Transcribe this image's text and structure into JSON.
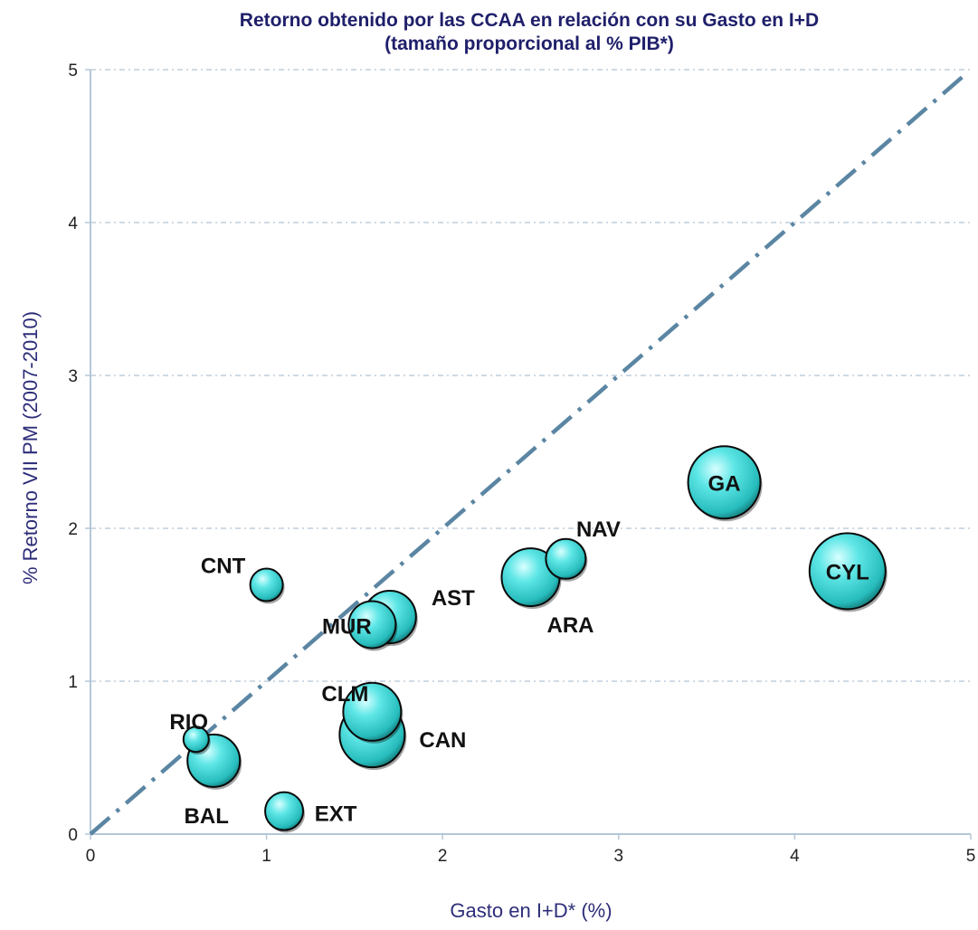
{
  "chart_data": {
    "type": "scatter",
    "subtype": "bubble",
    "title": "Retorno obtenido por las CCAA en relación con su Gasto en I+D",
    "subtitle": "(tamaño proporcional al % PIB*)",
    "xlabel": "Gasto en I+D* (%)",
    "ylabel": "% Retorno VII PM (2007-2010)",
    "xlim": [
      0,
      5
    ],
    "ylim": [
      0,
      5
    ],
    "x_ticks": [
      "0",
      "1",
      "2",
      "3",
      "4",
      "5"
    ],
    "y_ticks": [
      "0",
      "1",
      "2",
      "3",
      "4",
      "5"
    ],
    "grid": "horizontal dashed",
    "reference_line": {
      "style": "dash-dot",
      "from": [
        0,
        0
      ],
      "to": [
        4.95,
        4.95
      ],
      "color": "#5b86a3"
    },
    "colors": {
      "bubble": "#35d3d3",
      "title": "#1f1f6b",
      "axis_title": "#2e2e7a",
      "grid": "#9fb6c9"
    },
    "points": [
      {
        "label": "GA",
        "x": 3.6,
        "y": 2.3,
        "size": 40
      },
      {
        "label": "CYL",
        "x": 4.3,
        "y": 1.72,
        "size": 42
      },
      {
        "label": "NAV",
        "x": 2.7,
        "y": 1.8,
        "size": 22
      },
      {
        "label": "ARA",
        "x": 2.5,
        "y": 1.68,
        "size": 32
      },
      {
        "label": "CNT",
        "x": 1.0,
        "y": 1.63,
        "size": 18
      },
      {
        "label": "AST",
        "x": 1.7,
        "y": 1.42,
        "size": 29
      },
      {
        "label": "MUR",
        "x": 1.6,
        "y": 1.37,
        "size": 26
      },
      {
        "label": "CLM",
        "x": 1.6,
        "y": 0.8,
        "size": 32
      },
      {
        "label": "CAN",
        "x": 1.6,
        "y": 0.65,
        "size": 36
      },
      {
        "label": "RIO",
        "x": 0.6,
        "y": 0.62,
        "size": 14
      },
      {
        "label": "BAL",
        "x": 0.7,
        "y": 0.48,
        "size": 29
      },
      {
        "label": "EXT",
        "x": 1.1,
        "y": 0.15,
        "size": 21
      }
    ]
  }
}
